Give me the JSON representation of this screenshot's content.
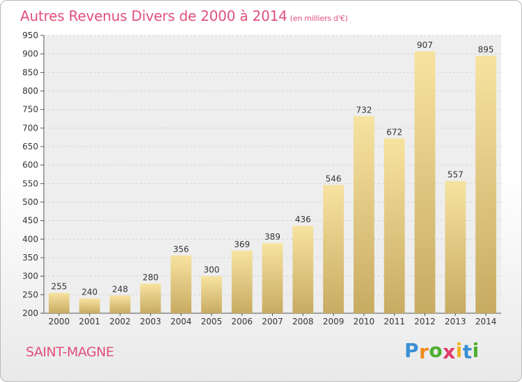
{
  "chart_data": {
    "type": "bar",
    "title": "Autres Revenus Divers de 2000 à 2014",
    "subtitle": "(en milliers d'€)",
    "categories": [
      "2000",
      "2001",
      "2002",
      "2003",
      "2004",
      "2005",
      "2006",
      "2007",
      "2008",
      "2009",
      "2010",
      "2011",
      "2012",
      "2013",
      "2014"
    ],
    "values": [
      255,
      240,
      248,
      280,
      356,
      300,
      369,
      389,
      436,
      546,
      732,
      672,
      907,
      557,
      895
    ],
    "ylim": [
      200,
      950
    ],
    "yticks": [
      200,
      250,
      300,
      350,
      400,
      450,
      500,
      550,
      600,
      650,
      700,
      750,
      800,
      850,
      900,
      950
    ],
    "grid": true,
    "bar_color_top": "#f7e3a0",
    "bar_color_bottom": "#c8ab62",
    "title_color": "#e0507a"
  },
  "footer": {
    "commune": "SAINT-MAGNE",
    "logo_letters": [
      {
        "ch": "P",
        "color": "#3a8fd4"
      },
      {
        "ch": "r",
        "color": "#f08a1c"
      },
      {
        "ch": "o",
        "color": "#4caf2e"
      },
      {
        "ch": "x",
        "color": "#e23a6a"
      },
      {
        "ch": "i",
        "color": "#f0b41c"
      },
      {
        "ch": "t",
        "color": "#3a8fd4"
      },
      {
        "ch": "i",
        "color": "#4caf2e"
      }
    ]
  }
}
